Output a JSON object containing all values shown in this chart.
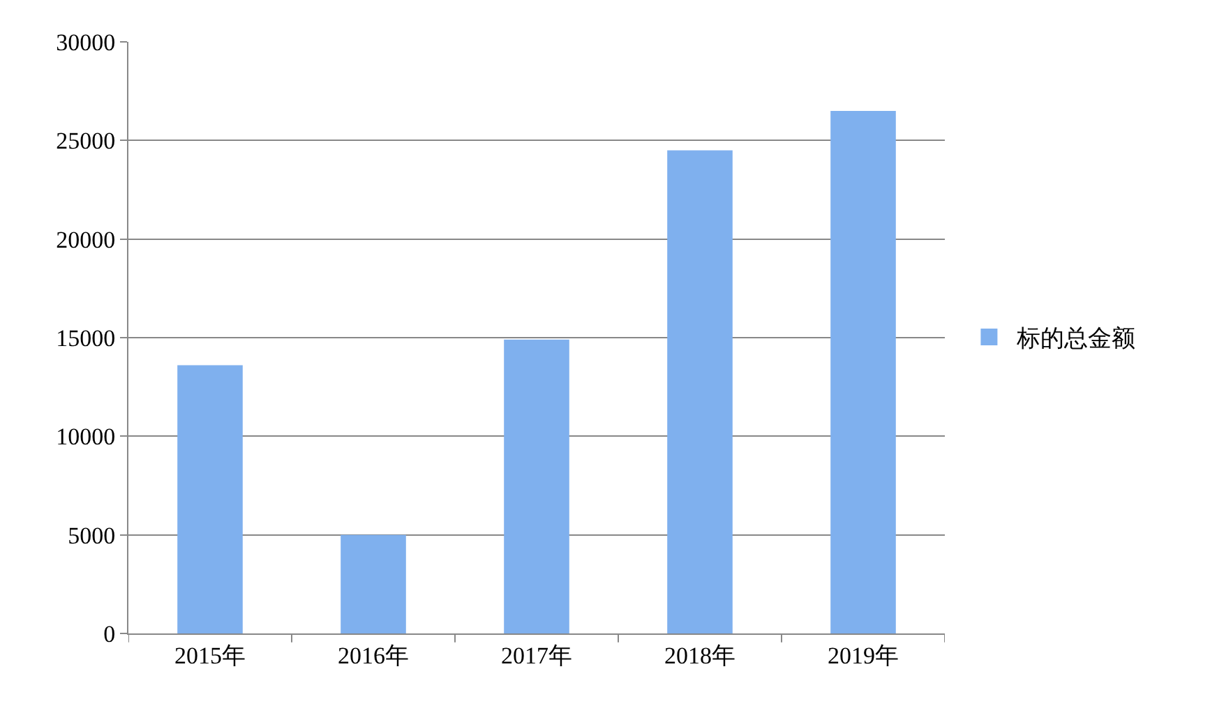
{
  "chart_data": {
    "type": "bar",
    "categories": [
      "2015年",
      "2016年",
      "2017年",
      "2018年",
      "2019年"
    ],
    "series": [
      {
        "name": "标的总金额",
        "color": "#7fb0ee",
        "values": [
          13600,
          5000,
          14900,
          24500,
          26500
        ]
      }
    ],
    "ylim": [
      0,
      30000
    ],
    "yticks": [
      0,
      5000,
      10000,
      15000,
      20000,
      25000,
      30000
    ],
    "grid": "y",
    "legend": "right"
  }
}
